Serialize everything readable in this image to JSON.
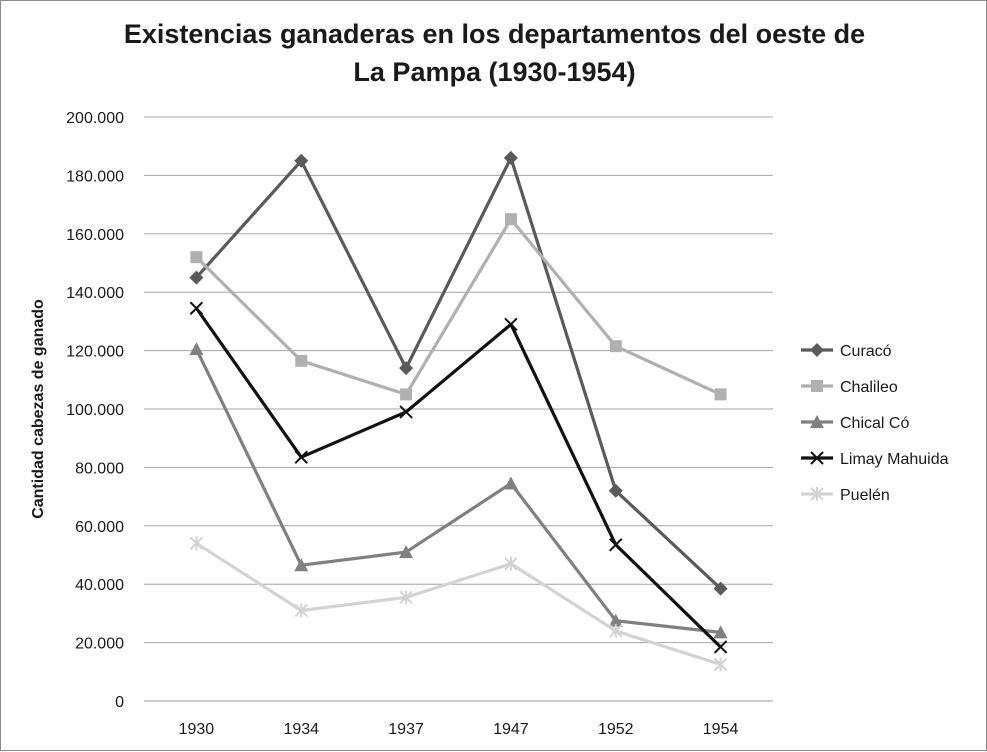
{
  "chart_data": {
    "type": "line",
    "title_line1": "Existencias ganaderas en los departamentos del oeste de",
    "title_line2": "La Pampa (1930-1954)",
    "xlabel": "",
    "ylabel": "Cantidad cabezas de ganado",
    "categories": [
      "1930",
      "1934",
      "1937",
      "1947",
      "1952",
      "1954"
    ],
    "ylim": [
      0,
      200000
    ],
    "yticks": [
      0,
      20000,
      40000,
      60000,
      80000,
      100000,
      120000,
      140000,
      160000,
      180000,
      200000
    ],
    "ytick_labels": [
      "0",
      "20.000",
      "40.000",
      "60.000",
      "80.000",
      "100.000",
      "120.000",
      "140.000",
      "160.000",
      "180.000",
      "200.000"
    ],
    "grid": "horizontal",
    "legend_position": "right",
    "series": [
      {
        "name": "Curacó",
        "color": "#5a5a5a",
        "marker": "diamond",
        "values": [
          145000,
          185000,
          114000,
          186000,
          72000,
          38500
        ]
      },
      {
        "name": "Chalileo",
        "color": "#b0b0b0",
        "marker": "square",
        "values": [
          152000,
          116500,
          105000,
          165000,
          121500,
          105000
        ]
      },
      {
        "name": "Chical Có",
        "color": "#808080",
        "marker": "triangle",
        "values": [
          120500,
          46500,
          51000,
          74500,
          27500,
          23500
        ]
      },
      {
        "name": "Limay Mahuida",
        "color": "#111111",
        "marker": "x",
        "values": [
          134500,
          83500,
          99000,
          129000,
          53500,
          18500
        ]
      },
      {
        "name": "Puelén",
        "color": "#d3d3d3",
        "marker": "star",
        "values": [
          54000,
          31000,
          35500,
          47000,
          24000,
          12500
        ]
      }
    ]
  }
}
